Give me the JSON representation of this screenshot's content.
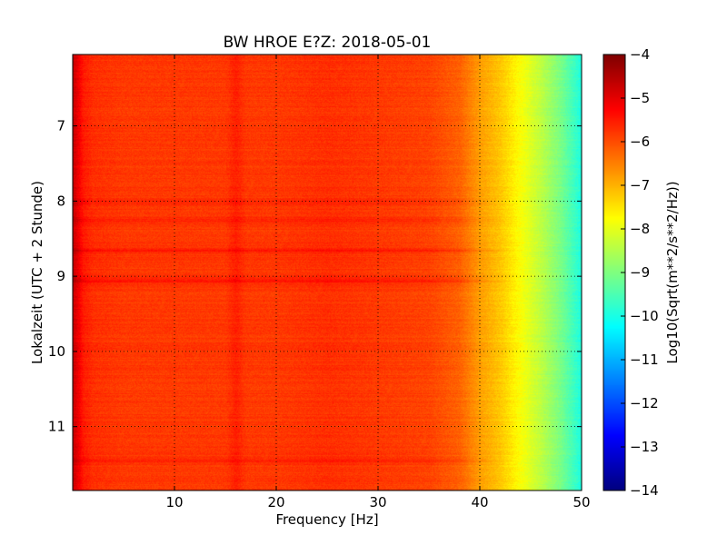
{
  "chart_data": {
    "type": "heatmap",
    "title": "BW HROE E?Z: 2018-05-01",
    "xlabel": "Frequency [Hz]",
    "ylabel": "Lokalzeit (UTC + 2 Stunde)",
    "xlim": [
      0,
      50
    ],
    "ylim": [
      11.85,
      6.05
    ],
    "y_axis_inverted": true,
    "x_ticks": [
      10,
      20,
      30,
      40,
      50
    ],
    "y_ticks": [
      7,
      8,
      9,
      10,
      11
    ],
    "x_tick_labels": [
      "10",
      "20",
      "30",
      "40",
      "50"
    ],
    "y_tick_labels": [
      "7",
      "8",
      "9",
      "10",
      "11"
    ],
    "grid": true,
    "colormap": "jet",
    "colorbar": {
      "label": "Log10(Sqrt(m**2/s**2/Hz))",
      "range": [
        -14,
        -4
      ],
      "ticks": [
        -4,
        -5,
        -6,
        -7,
        -8,
        -9,
        -10,
        -11,
        -12,
        -13,
        -14
      ],
      "tick_labels": [
        "−4",
        "−5",
        "−6",
        "−7",
        "−8",
        "−9",
        "−10",
        "−11",
        "−12",
        "−13",
        "−14"
      ]
    },
    "spectral_profile": {
      "frequency_hz": [
        0,
        0.5,
        1,
        2,
        5,
        10,
        15,
        16,
        17,
        20,
        25,
        30,
        35,
        38,
        40,
        42,
        44,
        46,
        48,
        50
      ],
      "log10_amplitude": [
        -4.7,
        -5.1,
        -5.5,
        -5.7,
        -5.8,
        -5.8,
        -5.8,
        -5.55,
        -5.8,
        -5.8,
        -5.7,
        -5.8,
        -5.9,
        -6.2,
        -6.8,
        -7.2,
        -7.8,
        -8.4,
        -9.1,
        -10.0
      ]
    },
    "time_features": [
      {
        "time": 8.0,
        "delta_log10": 0.25
      },
      {
        "time": 8.25,
        "delta_log10": 0.2
      },
      {
        "time": 8.65,
        "delta_log10": 0.3
      },
      {
        "time": 9.05,
        "delta_log10": 0.35
      },
      {
        "time": 11.45,
        "delta_log10": 0.25
      }
    ]
  }
}
